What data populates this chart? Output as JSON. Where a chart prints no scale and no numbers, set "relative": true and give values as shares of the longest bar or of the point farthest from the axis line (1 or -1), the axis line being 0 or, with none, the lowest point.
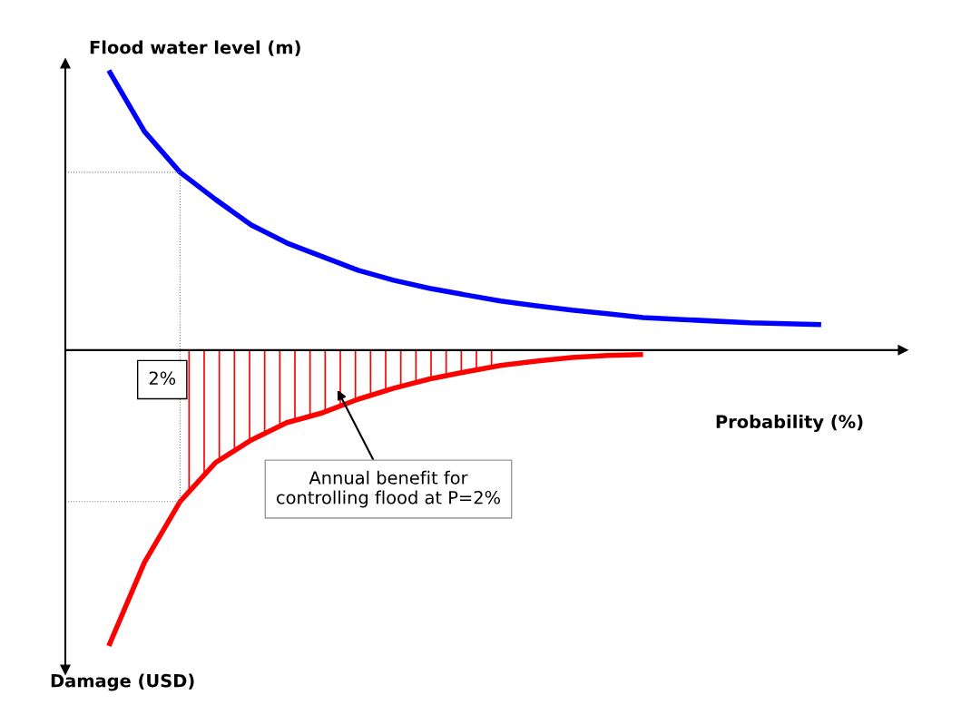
{
  "chart_data": {
    "type": "line",
    "relative": true,
    "xlabel": "Probability (%)",
    "ylabel": "Flood water level (m)",
    "categories": [
      null,
      null,
      null,
      null,
      null,
      null,
      null,
      null,
      null,
      null,
      null,
      null,
      null,
      null,
      null,
      null,
      null,
      null,
      null,
      null,
      null
    ],
    "series": [
      {
        "color": "#0000ff",
        "values": [
          0.945,
          0.739,
          0.601,
          0.509,
          0.423,
          0.362,
          0.316,
          0.27,
          0.236,
          0.209,
          0.187,
          0.166,
          0.15,
          0.135,
          0.123,
          0.11,
          0.104,
          0.098,
          0.092,
          0.089,
          0.086
        ]
      },
      {
        "color": "#ff0000",
        "values": [
          -1,
          -0.718,
          -0.512,
          -0.38,
          -0.304,
          -0.245,
          -0.212,
          -0.166,
          -0.129,
          -0.098,
          -0.074,
          -0.052,
          -0.037,
          -0.025,
          -0.018,
          -0.015,
          null,
          null,
          null,
          null,
          null
        ]
      },
      {
        "type": "area",
        "color": "#ff0000",
        "values": [
          null,
          null,
          -0.512,
          -0.38,
          -0.304,
          -0.245,
          -0.212,
          -0.166,
          -0.129,
          -0.098,
          -0.074,
          -0.052,
          null,
          null,
          null,
          null,
          null,
          null,
          null,
          null,
          null
        ]
      }
    ],
    "ref_lines": [
      {
        "axis": "y",
        "value": 0.601,
        "color": "#808080",
        "line_style": "dotted"
      },
      {
        "axis": "y",
        "value": -0.512,
        "color": "#808080",
        "line_style": "dotted"
      }
    ],
    "annotations": [
      "2%",
      "Damage (USD)",
      "Annual benefit for\ncontrolling flood at P=2%"
    ],
    "legend": false
  }
}
